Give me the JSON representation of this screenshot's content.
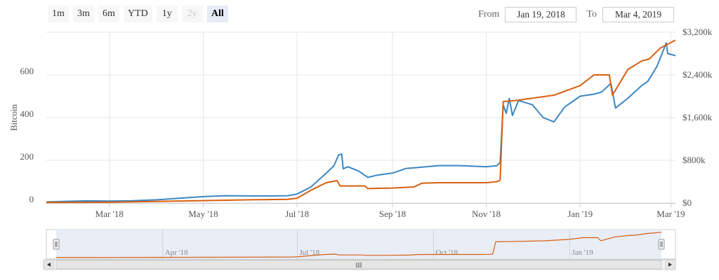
{
  "range_selector": {
    "buttons": [
      {
        "label": "1m",
        "state": "normal"
      },
      {
        "label": "3m",
        "state": "normal"
      },
      {
        "label": "6m",
        "state": "normal"
      },
      {
        "label": "YTD",
        "state": "normal"
      },
      {
        "label": "1y",
        "state": "normal"
      },
      {
        "label": "2y",
        "state": "disabled"
      },
      {
        "label": "All",
        "state": "active"
      }
    ],
    "from_label": "From",
    "from_value": "Jan 19, 2018",
    "to_label": "To",
    "to_value": "Mar 4, 2019"
  },
  "colors": {
    "series_a": "#3a87c4",
    "series_b": "#d95f0e",
    "grid": "#e6e6e6",
    "navigator_mask": "#e6ebf5"
  },
  "chart_data": {
    "type": "line",
    "x_ticks": [
      "Mar '18",
      "May '18",
      "Jul '18",
      "Sep '18",
      "Nov '18",
      "Jan '19",
      "Mar '19"
    ],
    "x_tick_dates": [
      "2018-03-01",
      "2018-05-01",
      "2018-07-01",
      "2018-09-01",
      "2018-11-01",
      "2019-01-01",
      "2019-03-01"
    ],
    "xlim": [
      "2018-01-19",
      "2019-03-04"
    ],
    "y_left": {
      "label": "Bitcoin",
      "ticks": [
        "0",
        "200",
        "400",
        "600"
      ],
      "values": [
        0,
        200,
        400,
        600
      ],
      "range": [
        0,
        800
      ]
    },
    "y_right": {
      "ticks": [
        "$0",
        "$800k",
        "$1,600k",
        "$2,400k",
        "$3,200k"
      ],
      "values": [
        0,
        800000,
        1600000,
        2400000,
        3200000
      ],
      "range": [
        0,
        3200000
      ]
    },
    "grid": true,
    "legend": "none",
    "series": [
      {
        "axis": "left",
        "color": "#3a87c4",
        "points": [
          [
            "2018-01-19",
            5
          ],
          [
            "2018-02-01",
            8
          ],
          [
            "2018-02-15",
            10
          ],
          [
            "2018-03-01",
            9
          ],
          [
            "2018-03-15",
            10
          ],
          [
            "2018-04-01",
            15
          ],
          [
            "2018-04-15",
            22
          ],
          [
            "2018-05-01",
            30
          ],
          [
            "2018-05-15",
            34
          ],
          [
            "2018-06-01",
            33
          ],
          [
            "2018-06-15",
            33
          ],
          [
            "2018-06-25",
            34
          ],
          [
            "2018-07-01",
            42
          ],
          [
            "2018-07-10",
            75
          ],
          [
            "2018-07-20",
            140
          ],
          [
            "2018-07-25",
            175
          ],
          [
            "2018-07-28",
            225
          ],
          [
            "2018-07-30",
            230
          ],
          [
            "2018-07-31",
            160
          ],
          [
            "2018-08-03",
            170
          ],
          [
            "2018-08-10",
            150
          ],
          [
            "2018-08-16",
            120
          ],
          [
            "2018-08-22",
            130
          ],
          [
            "2018-09-01",
            140
          ],
          [
            "2018-09-10",
            162
          ],
          [
            "2018-09-15",
            165
          ],
          [
            "2018-10-01",
            175
          ],
          [
            "2018-10-15",
            175
          ],
          [
            "2018-11-01",
            170
          ],
          [
            "2018-11-08",
            175
          ],
          [
            "2018-11-10",
            190
          ],
          [
            "2018-11-12",
            460
          ],
          [
            "2018-11-14",
            420
          ],
          [
            "2018-11-16",
            490
          ],
          [
            "2018-11-18",
            410
          ],
          [
            "2018-11-22",
            480
          ],
          [
            "2018-12-01",
            460
          ],
          [
            "2018-12-08",
            400
          ],
          [
            "2018-12-15",
            380
          ],
          [
            "2018-12-22",
            450
          ],
          [
            "2019-01-01",
            500
          ],
          [
            "2019-01-10",
            510
          ],
          [
            "2019-01-15",
            520
          ],
          [
            "2019-01-21",
            560
          ],
          [
            "2019-01-24",
            445
          ],
          [
            "2019-02-01",
            490
          ],
          [
            "2019-02-10",
            550
          ],
          [
            "2019-02-14",
            570
          ],
          [
            "2019-02-20",
            640
          ],
          [
            "2019-02-26",
            750
          ],
          [
            "2019-02-27",
            700
          ],
          [
            "2019-03-04",
            690
          ]
        ]
      },
      {
        "axis": "right",
        "color": "#d95f0e",
        "points": [
          [
            "2018-01-19",
            10000
          ],
          [
            "2018-03-01",
            15000
          ],
          [
            "2018-04-01",
            30000
          ],
          [
            "2018-05-01",
            45000
          ],
          [
            "2018-06-01",
            60000
          ],
          [
            "2018-06-25",
            70000
          ],
          [
            "2018-07-01",
            90000
          ],
          [
            "2018-07-10",
            240000
          ],
          [
            "2018-07-20",
            380000
          ],
          [
            "2018-07-27",
            420000
          ],
          [
            "2018-07-29",
            320000
          ],
          [
            "2018-08-01",
            320000
          ],
          [
            "2018-08-14",
            320000
          ],
          [
            "2018-08-16",
            270000
          ],
          [
            "2018-09-01",
            280000
          ],
          [
            "2018-09-15",
            300000
          ],
          [
            "2018-09-20",
            370000
          ],
          [
            "2018-10-01",
            380000
          ],
          [
            "2018-11-01",
            380000
          ],
          [
            "2018-11-08",
            400000
          ],
          [
            "2018-11-10",
            430000
          ],
          [
            "2018-11-12",
            1900000
          ],
          [
            "2018-11-20",
            1920000
          ],
          [
            "2018-12-15",
            2020000
          ],
          [
            "2019-01-01",
            2200000
          ],
          [
            "2019-01-10",
            2400000
          ],
          [
            "2019-01-15",
            2400000
          ],
          [
            "2019-01-20",
            2400000
          ],
          [
            "2019-01-22",
            2020000
          ],
          [
            "2019-02-01",
            2500000
          ],
          [
            "2019-02-10",
            2660000
          ],
          [
            "2019-02-15",
            2700000
          ],
          [
            "2019-02-22",
            2900000
          ],
          [
            "2019-03-04",
            3050000
          ]
        ]
      }
    ],
    "navigator": {
      "x_ticks": [
        "Apr '18",
        "Jul '18",
        "Oct '18",
        "Jan '19"
      ],
      "x_tick_dates": [
        "2018-04-01",
        "2018-07-01",
        "2018-10-01",
        "2019-01-01"
      ]
    }
  },
  "scrollbar": {
    "grip": "III"
  },
  "icons": {
    "left": "scroll-left-icon",
    "right": "scroll-right-icon"
  }
}
